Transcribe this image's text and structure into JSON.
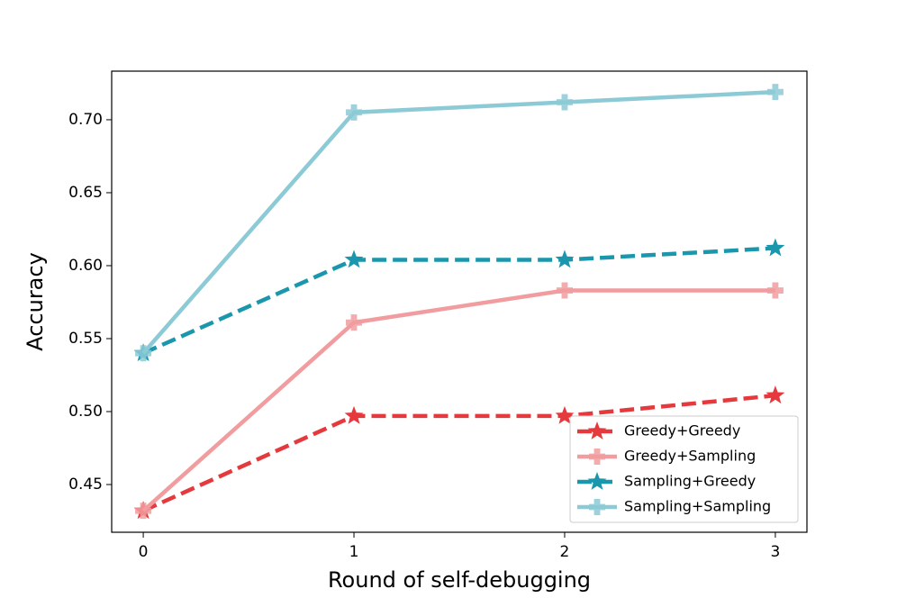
{
  "chart_data": {
    "type": "line",
    "x_label": "Round of self-debugging",
    "y_label": "Accuracy",
    "x": [
      0,
      1,
      2,
      3
    ],
    "xlim": [
      -0.15,
      3.15
    ],
    "xticks": [
      0,
      1,
      2,
      3
    ],
    "ylim": [
      0.4173,
      0.7333
    ],
    "yticks": [
      0.45,
      {
        "value": 0.5,
        "label": "0.50"
      },
      0.55,
      {
        "value": 0.6,
        "label": "0.60"
      },
      0.65,
      {
        "value": 0.7,
        "label": "0.70"
      }
    ],
    "grid": false,
    "legend": "lower right",
    "series": [
      {
        "name": "Greedy+Greedy",
        "color": "#e5393d",
        "dashed": true,
        "marker": "star",
        "values": [
          0.432,
          0.497,
          0.497,
          0.511
        ]
      },
      {
        "name": "Greedy+Sampling",
        "color": "#f19c9f",
        "dashed": false,
        "marker": "plus",
        "values": [
          0.432,
          0.561,
          0.583,
          0.583
        ]
      },
      {
        "name": "Sampling+Greedy",
        "color": "#1b97ad",
        "dashed": true,
        "marker": "star",
        "values": [
          0.54,
          0.604,
          0.604,
          0.612
        ]
      },
      {
        "name": "Sampling+Sampling",
        "color": "#8ccad6",
        "dashed": false,
        "marker": "plus",
        "values": [
          0.54,
          0.705,
          0.712,
          0.719
        ]
      }
    ]
  }
}
